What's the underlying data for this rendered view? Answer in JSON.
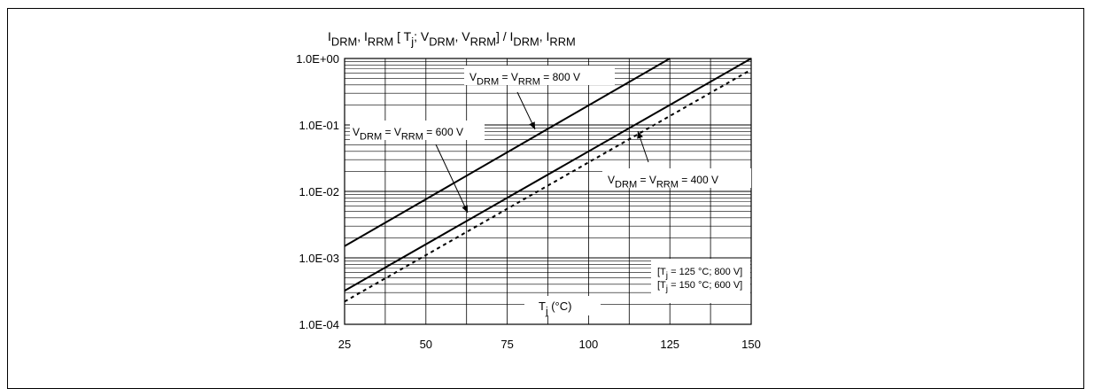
{
  "chart_data": {
    "type": "line",
    "title_parts": [
      {
        "t": "I",
        "s": "n"
      },
      {
        "t": "DRM",
        "s": "sub"
      },
      {
        "t": ", I",
        "s": "n"
      },
      {
        "t": "RRM",
        "s": "sub"
      },
      {
        "t": " [ T",
        "s": "n"
      },
      {
        "t": "j",
        "s": "sub"
      },
      {
        "t": "; V",
        "s": "n"
      },
      {
        "t": "DRM",
        "s": "sub"
      },
      {
        "t": ", V",
        "s": "n"
      },
      {
        "t": "RRM",
        "s": "sub"
      },
      {
        "t": "] / I",
        "s": "n"
      },
      {
        "t": "DRM",
        "s": "sub"
      },
      {
        "t": ", I",
        "s": "n"
      },
      {
        "t": "RRM",
        "s": "sub"
      }
    ],
    "xlabel_parts": [
      {
        "t": "T",
        "s": "n"
      },
      {
        "t": "j",
        "s": "sub"
      },
      {
        "t": " (°C)",
        "s": "n"
      }
    ],
    "xlim": [
      25,
      150
    ],
    "ylim": [
      0.0001,
      1
    ],
    "yscale": "log",
    "grid": true,
    "xticks": [
      25,
      50,
      75,
      100,
      125,
      150
    ],
    "xtick_labels": [
      "25",
      "50",
      "75",
      "100",
      "125",
      "150"
    ],
    "yticks": [
      0.0001,
      0.001,
      0.01,
      0.1,
      1
    ],
    "ytick_labels": [
      "1.0E-04",
      "1.0E-03",
      "1.0E-02",
      "1.0E-01",
      "1.0E+00"
    ],
    "series": [
      {
        "name_parts": [
          {
            "t": "V",
            "s": "n"
          },
          {
            "t": "DRM",
            "s": "sub"
          },
          {
            "t": " = V",
            "s": "n"
          },
          {
            "t": "RRM",
            "s": "sub"
          },
          {
            "t": " = 800 V",
            "s": "n"
          }
        ],
        "style": "solid",
        "x": [
          25,
          125
        ],
        "y": [
          0.0015,
          1.0
        ]
      },
      {
        "name_parts": [
          {
            "t": "V",
            "s": "n"
          },
          {
            "t": "DRM",
            "s": "sub"
          },
          {
            "t": " = V",
            "s": "n"
          },
          {
            "t": "RRM",
            "s": "sub"
          },
          {
            "t": " = 600 V",
            "s": "n"
          }
        ],
        "style": "solid",
        "x": [
          25,
          150
        ],
        "y": [
          0.00032,
          1.0
        ]
      },
      {
        "name_parts": [
          {
            "t": "V",
            "s": "n"
          },
          {
            "t": "DRM",
            "s": "sub"
          },
          {
            "t": " = V",
            "s": "n"
          },
          {
            "t": "RRM",
            "s": "sub"
          },
          {
            "t": " = 400 V",
            "s": "n"
          }
        ],
        "style": "dashed",
        "x": [
          25,
          150
        ],
        "y": [
          0.00022,
          0.68
        ]
      }
    ],
    "note_lines": [
      [
        {
          "t": "[T",
          "s": "n"
        },
        {
          "t": "j",
          "s": "sub"
        },
        {
          "t": " = 125 °C; 800 V]",
          "s": "n"
        }
      ],
      [
        {
          "t": "[T",
          "s": "n"
        },
        {
          "t": "j",
          "s": "sub"
        },
        {
          "t": " = 150 °C; 600 V]",
          "s": "n"
        }
      ]
    ]
  }
}
